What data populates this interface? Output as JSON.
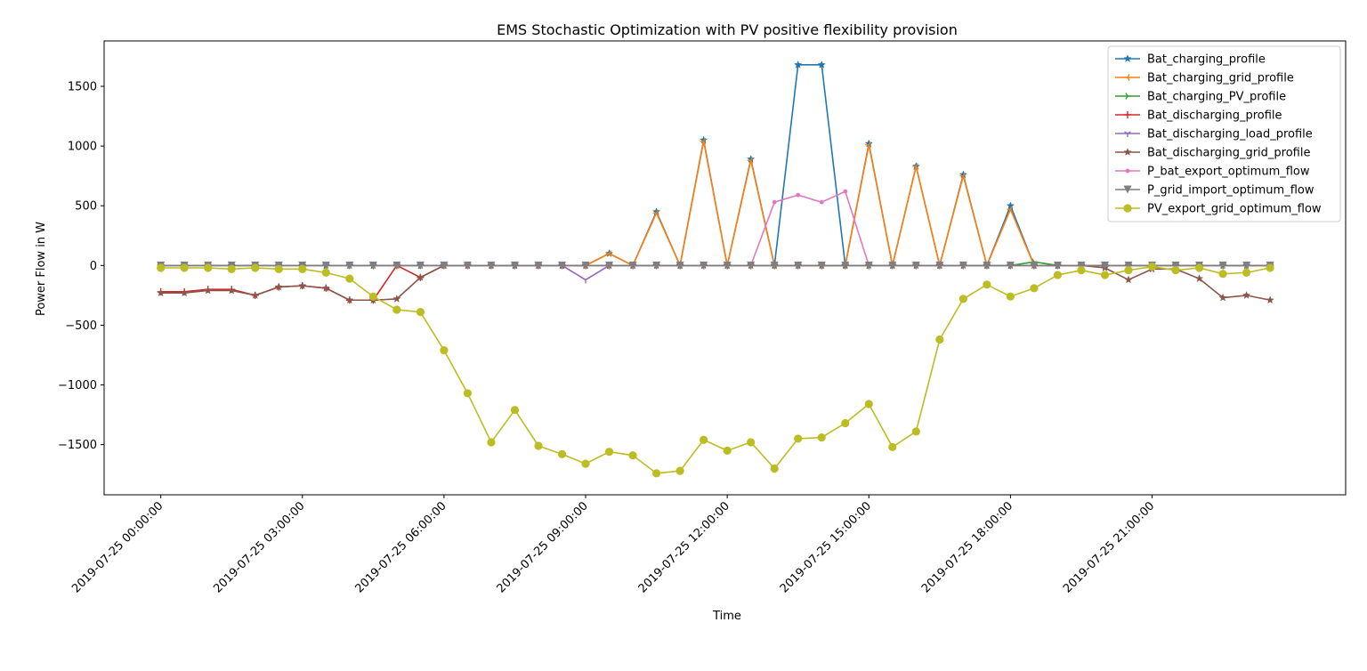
{
  "chart_data": {
    "type": "line",
    "title": "EMS Stochastic Optimization with PV positive flexibility provision",
    "xlabel": "Time",
    "ylabel": "Power Flow in W",
    "xlim": [
      -1.2,
      25.1
    ],
    "ylim": [
      -1920,
      1880
    ],
    "x_start": "2019-07-25 00:00:00",
    "x_step_minutes": 30,
    "n_points": 48,
    "x_ticks": [
      0,
      3,
      6,
      9,
      12,
      15,
      18,
      21
    ],
    "x_tick_labels": [
      "2019-07-25 00:00:00",
      "2019-07-25 03:00:00",
      "2019-07-25 06:00:00",
      "2019-07-25 09:00:00",
      "2019-07-25 12:00:00",
      "2019-07-25 15:00:00",
      "2019-07-25 18:00:00",
      "2019-07-25 21:00:00"
    ],
    "y_ticks": [
      -1500,
      -1000,
      -500,
      0,
      500,
      1000,
      1500
    ],
    "y_tick_labels": [
      "−1500",
      "−1000",
      "−500",
      "0",
      "500",
      "1000",
      "1500"
    ],
    "grid": false,
    "legend_position": "upper right",
    "series": [
      {
        "name": "Bat_charging_profile",
        "color": "#1f77b4",
        "marker": "star",
        "values": [
          0,
          0,
          0,
          0,
          0,
          0,
          0,
          0,
          0,
          0,
          0,
          0,
          0,
          0,
          0,
          0,
          0,
          0,
          0,
          100,
          0,
          450,
          0,
          1050,
          0,
          890,
          0,
          1680,
          1680,
          0,
          1020,
          0,
          830,
          0,
          760,
          0,
          500,
          0,
          0,
          0,
          0,
          0,
          0,
          0,
          0,
          0,
          0,
          0
        ]
      },
      {
        "name": "Bat_charging_grid_profile",
        "color": "#ff7f0e",
        "marker": "tri_left",
        "values": [
          0,
          0,
          0,
          0,
          0,
          0,
          0,
          0,
          0,
          0,
          0,
          0,
          0,
          0,
          0,
          0,
          0,
          0,
          0,
          100,
          0,
          440,
          0,
          1040,
          0,
          880,
          0,
          0,
          0,
          0,
          1010,
          0,
          830,
          0,
          750,
          0,
          470,
          0,
          0,
          0,
          0,
          0,
          0,
          0,
          0,
          0,
          0,
          0
        ]
      },
      {
        "name": "Bat_charging_PV_profile",
        "color": "#2ca02c",
        "marker": "tri_right",
        "values": [
          0,
          0,
          0,
          0,
          0,
          0,
          0,
          0,
          0,
          0,
          0,
          0,
          0,
          0,
          0,
          0,
          0,
          0,
          0,
          0,
          0,
          0,
          0,
          0,
          0,
          0,
          0,
          0,
          0,
          0,
          0,
          0,
          0,
          0,
          0,
          0,
          0,
          30,
          0,
          0,
          0,
          0,
          0,
          0,
          0,
          0,
          0,
          0
        ]
      },
      {
        "name": "Bat_discharging_profile",
        "color": "#d62728",
        "marker": "plus",
        "values": [
          -220,
          -220,
          -200,
          -200,
          -250,
          -180,
          -170,
          -190,
          -290,
          -290,
          0,
          -100,
          0,
          0,
          0,
          0,
          0,
          0,
          0,
          0,
          0,
          0,
          0,
          0,
          0,
          0,
          0,
          0,
          0,
          0,
          0,
          0,
          0,
          0,
          0,
          0,
          0,
          0,
          0,
          0,
          0,
          0,
          0,
          0,
          0,
          0,
          0,
          0
        ]
      },
      {
        "name": "Bat_discharging_load_profile",
        "color": "#9467bd",
        "marker": "tri_down",
        "values": [
          0,
          0,
          0,
          0,
          0,
          0,
          0,
          0,
          0,
          0,
          0,
          0,
          0,
          0,
          0,
          0,
          0,
          0,
          -120,
          0,
          0,
          0,
          0,
          0,
          0,
          0,
          0,
          0,
          0,
          0,
          0,
          0,
          0,
          0,
          0,
          0,
          0,
          0,
          0,
          0,
          0,
          0,
          0,
          0,
          0,
          0,
          0,
          0
        ]
      },
      {
        "name": "Bat_discharging_grid_profile",
        "color": "#8c564b",
        "marker": "star",
        "values": [
          -230,
          -230,
          -210,
          -210,
          -250,
          -180,
          -170,
          -190,
          -290,
          -290,
          -280,
          -100,
          0,
          0,
          0,
          0,
          0,
          0,
          0,
          0,
          0,
          0,
          0,
          0,
          0,
          0,
          0,
          0,
          0,
          0,
          0,
          0,
          0,
          0,
          0,
          0,
          0,
          0,
          0,
          0,
          -20,
          -120,
          -30,
          -30,
          -110,
          -270,
          -250,
          -290
        ]
      },
      {
        "name": "P_bat_export_optimum_flow",
        "color": "#e377c2",
        "marker": "point",
        "values": [
          0,
          0,
          0,
          0,
          0,
          0,
          0,
          0,
          0,
          0,
          0,
          0,
          0,
          0,
          0,
          0,
          0,
          0,
          0,
          0,
          0,
          0,
          0,
          0,
          0,
          0,
          530,
          590,
          530,
          620,
          0,
          0,
          0,
          0,
          0,
          0,
          0,
          0,
          0,
          0,
          0,
          0,
          0,
          0,
          0,
          0,
          0,
          0
        ]
      },
      {
        "name": "P_grid_import_optimum_flow",
        "color": "#7f7f7f",
        "marker": "triangle_down",
        "values": [
          0,
          0,
          0,
          0,
          0,
          0,
          0,
          0,
          0,
          0,
          0,
          0,
          0,
          0,
          0,
          0,
          0,
          0,
          0,
          0,
          0,
          0,
          0,
          0,
          0,
          0,
          0,
          0,
          0,
          0,
          0,
          0,
          0,
          0,
          0,
          0,
          0,
          0,
          0,
          0,
          0,
          0,
          0,
          0,
          0,
          0,
          0,
          0
        ]
      },
      {
        "name": "PV_export_grid_optimum_flow",
        "color": "#bcbd22",
        "marker": "circle",
        "values": [
          -20,
          -20,
          -20,
          -30,
          -20,
          -30,
          -30,
          -60,
          -110,
          -260,
          -370,
          -390,
          -710,
          -1070,
          -1480,
          -1210,
          -1510,
          -1580,
          -1660,
          -1560,
          -1590,
          -1740,
          -1720,
          -1460,
          -1550,
          -1480,
          -1700,
          -1450,
          -1440,
          -1320,
          -1160,
          -1520,
          -1390,
          -620,
          -280,
          -160,
          -260,
          -190,
          -80,
          -40,
          -80,
          -40,
          -10,
          -40,
          -20,
          -70,
          -60,
          -20
        ]
      }
    ]
  }
}
